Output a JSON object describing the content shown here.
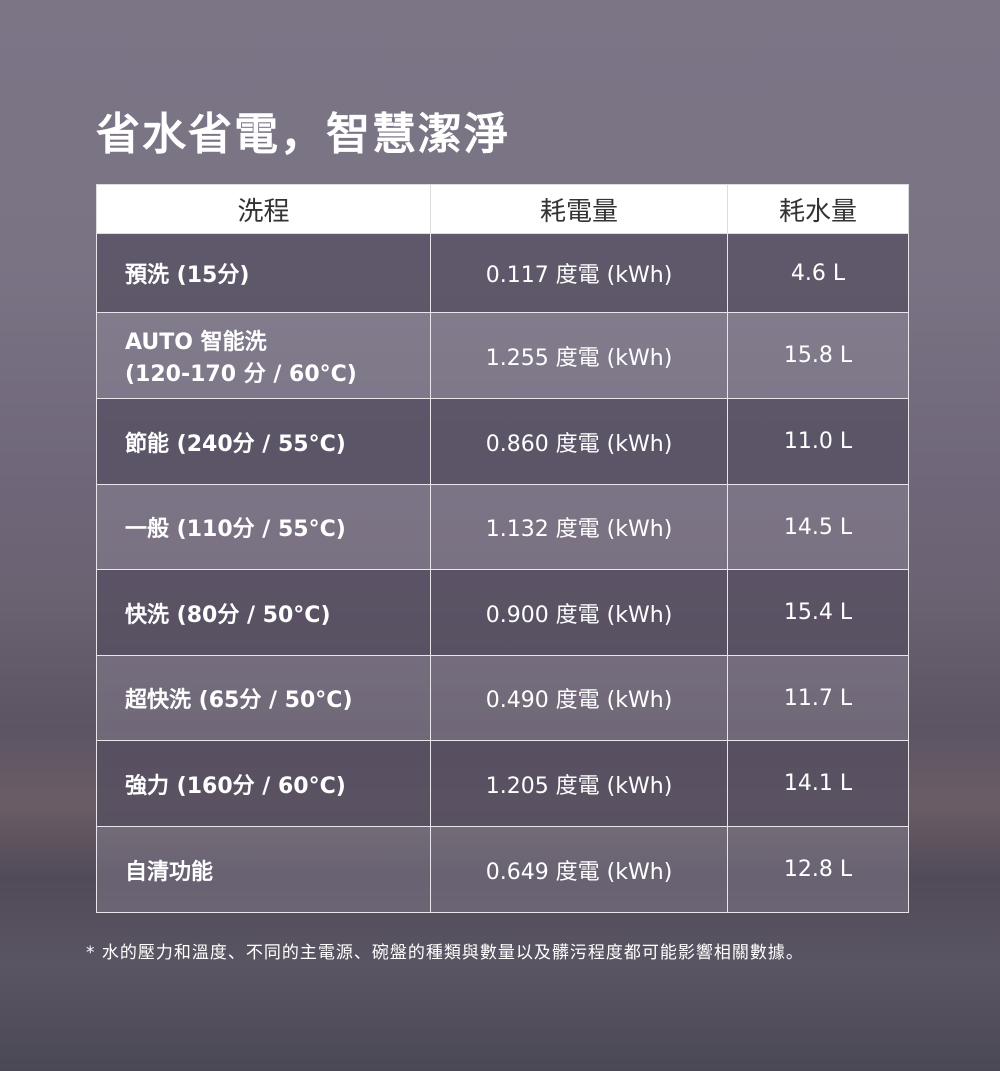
{
  "title": "省水省電，智慧潔淨",
  "table": {
    "headers": [
      "洗程",
      "耗電量",
      "耗水量"
    ],
    "rows": [
      {
        "program": "預洗 (15分)",
        "power": "0.117 度電 (kWh)",
        "water": "4.6 L"
      },
      {
        "program": "AUTO 智能洗\n (120-170 分 / 60°C)",
        "power": "1.255 度電 (kWh)",
        "water": "15.8 L"
      },
      {
        "program": "節能 (240分 / 55°C)",
        "power": "0.860 度電 (kWh)",
        "water": "11.0 L"
      },
      {
        "program": "一般 (110分 / 55°C)",
        "power": "1.132 度電 (kWh)",
        "water": "14.5 L"
      },
      {
        "program": "快洗 (80分 / 50°C)",
        "power": "0.900 度電 (kWh)",
        "water": "15.4 L"
      },
      {
        "program": "超快洗 (65分 / 50°C)",
        "power": "0.490 度電 (kWh)",
        "water": "11.7 L"
      },
      {
        "program": "強力 (160分 / 60°C)",
        "power": "1.205 度電 (kWh)",
        "water": "14.1 L"
      },
      {
        "program": "自清功能",
        "power": "0.649 度電 (kWh)",
        "water": "12.8 L"
      }
    ]
  },
  "footnote": "* 水的壓力和溫度、不同的主電源、碗盤的種類與數量以及髒污程度都可能影響相關數據。"
}
